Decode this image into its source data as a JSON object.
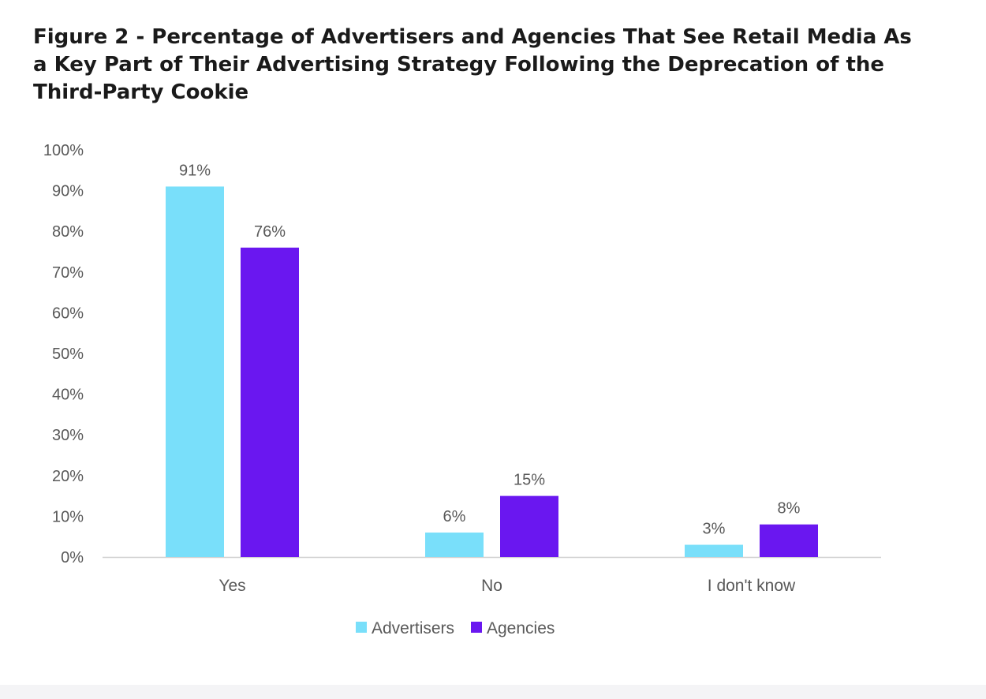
{
  "chart_data": {
    "type": "bar",
    "title_lines": [
      "Figure 2 - Percentage of Advertisers and Agencies That See Retail Media As",
      "a Key Part of Their Advertising Strategy Following the Deprecation of the",
      "Third-Party Cookie"
    ],
    "categories": [
      "Yes",
      "No",
      "I don't know"
    ],
    "series": [
      {
        "name": "Advertisers",
        "color": "#79DFFA",
        "values": [
          91,
          6,
          3
        ],
        "labels": [
          "91%",
          "6%",
          "3%"
        ]
      },
      {
        "name": "Agencies",
        "color": "#6A17F0",
        "values": [
          76,
          15,
          8
        ],
        "labels": [
          "76%",
          "15%",
          "8%"
        ]
      }
    ],
    "y_ticks": [
      "0%",
      "10%",
      "20%",
      "30%",
      "40%",
      "50%",
      "60%",
      "70%",
      "80%",
      "90%",
      "100%"
    ],
    "ylim": [
      0,
      100
    ],
    "xlabel": "",
    "ylabel": "",
    "grid": false,
    "legend": "bottom-center"
  }
}
